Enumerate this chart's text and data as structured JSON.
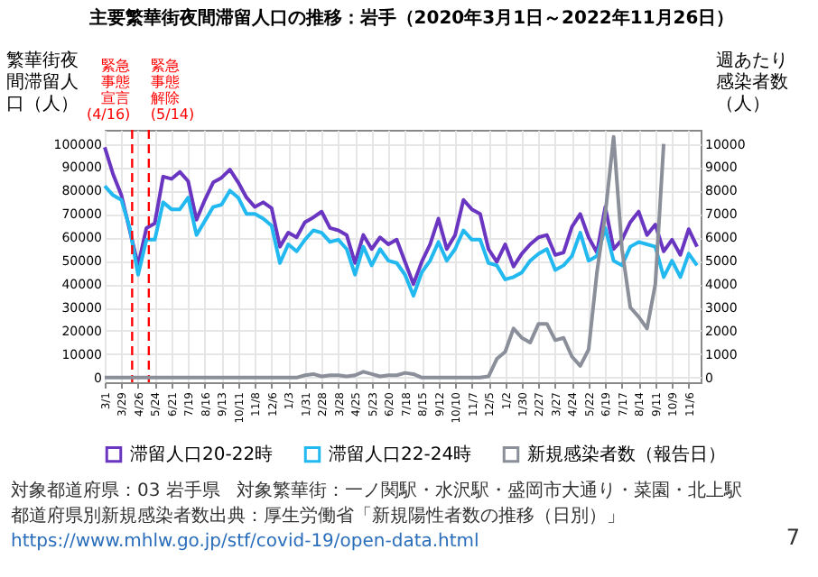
{
  "chart_data": {
    "type": "line",
    "title": "主要繁華街夜間滞留人口の推移：岩手（2020年3月1日～2022年11月26日）",
    "ylabel": "繁華街夜間滞留人口（人）",
    "y2label": "週あたり感染者数（人）",
    "x": [
      "2020-03-01",
      "2020-03-15",
      "2020-03-29",
      "2020-04-12",
      "2020-04-26",
      "2020-05-10",
      "2020-05-24",
      "2020-06-07",
      "2020-06-21",
      "2020-07-05",
      "2020-07-19",
      "2020-08-02",
      "2020-08-16",
      "2020-08-30",
      "2020-09-13",
      "2020-09-27",
      "2020-10-11",
      "2020-10-25",
      "2020-11-08",
      "2020-11-22",
      "2020-12-06",
      "2020-12-20",
      "2021-01-03",
      "2021-01-17",
      "2021-01-31",
      "2021-02-14",
      "2021-02-28",
      "2021-03-14",
      "2021-03-28",
      "2021-04-11",
      "2021-04-25",
      "2021-05-09",
      "2021-05-23",
      "2021-06-06",
      "2021-06-20",
      "2021-07-04",
      "2021-07-18",
      "2021-08-01",
      "2021-08-15",
      "2021-08-29",
      "2021-09-12",
      "2021-09-26",
      "2021-10-10",
      "2021-10-24",
      "2021-11-07",
      "2021-11-21",
      "2021-12-05",
      "2021-12-19",
      "2022-01-02",
      "2022-01-16",
      "2022-01-30",
      "2022-02-13",
      "2022-02-27",
      "2022-03-13",
      "2022-03-27",
      "2022-04-10",
      "2022-04-24",
      "2022-05-08",
      "2022-05-22",
      "2022-06-05",
      "2022-06-19",
      "2022-07-03",
      "2022-07-17",
      "2022-07-31",
      "2022-08-14",
      "2022-08-28",
      "2022-09-11",
      "2022-09-25",
      "2022-10-09",
      "2022-10-23",
      "2022-11-06",
      "2022-11-20"
    ],
    "series": [
      {
        "name": "滞留人口20-22時",
        "color": "#6a35c0",
        "values": [
          98500,
          87000,
          78000,
          63000,
          48000,
          64000,
          66000,
          86000,
          85000,
          88000,
          84000,
          67500,
          76000,
          83500,
          85500,
          89000,
          83500,
          77000,
          73000,
          75000,
          72500,
          56000,
          62000,
          60000,
          66500,
          68500,
          71000,
          64000,
          63000,
          61000,
          49000,
          61000,
          55000,
          60000,
          57000,
          59000,
          49500,
          40000,
          49500,
          57000,
          68000,
          55000,
          61000,
          76000,
          72000,
          70000,
          55000,
          49500,
          57000,
          47500,
          53000,
          57000,
          60000,
          61000,
          52500,
          53500,
          64500,
          70000,
          60000,
          53500,
          73000,
          55000,
          59000,
          66500,
          71000,
          61000,
          65500,
          54000,
          59000,
          52500,
          63500,
          56000
        ]
      },
      {
        "name": "滞留人口22-24時",
        "color": "#22b8f0",
        "values": [
          82000,
          78000,
          76000,
          64000,
          44000,
          59000,
          59000,
          75000,
          72000,
          72000,
          77000,
          61000,
          67000,
          73000,
          74000,
          80000,
          77000,
          70000,
          70000,
          68000,
          65000,
          49000,
          57000,
          54000,
          59000,
          63000,
          62000,
          58000,
          59000,
          55000,
          44000,
          56000,
          48000,
          55000,
          50000,
          49000,
          44000,
          35000,
          45000,
          50000,
          58000,
          50000,
          55000,
          63000,
          59000,
          59000,
          49000,
          48000,
          42000,
          43000,
          45000,
          50000,
          53000,
          55000,
          46000,
          48000,
          52000,
          62000,
          50000,
          52000,
          64000,
          50000,
          48000,
          56000,
          58000,
          57000,
          56000,
          43000,
          50000,
          43000,
          53000,
          48000
        ]
      },
      {
        "name": "新規感染者数（報告日）",
        "color": "#8a8f99",
        "axis": "y2",
        "values": [
          0,
          0,
          0,
          0,
          0,
          0,
          0,
          0,
          0,
          0,
          0,
          0,
          0,
          0,
          0,
          0,
          0,
          0,
          0,
          0,
          0,
          0,
          0,
          0,
          100,
          150,
          50,
          100,
          100,
          50,
          100,
          250,
          150,
          50,
          100,
          100,
          200,
          150,
          0,
          0,
          0,
          0,
          0,
          0,
          0,
          0,
          50,
          800,
          1100,
          2100,
          1700,
          1500,
          2300,
          2300,
          1600,
          1700,
          900,
          500,
          1200,
          4500,
          7000,
          10300,
          5500,
          3000,
          2600,
          2100,
          4000,
          10000,
          null,
          null,
          null,
          null
        ]
      }
    ],
    "xlim": [
      "2020-03-01",
      "2022-11-26"
    ],
    "xticks": [
      {
        "value": "2020-03-01",
        "label": "3/1"
      },
      {
        "value": "2020-03-29",
        "label": "3/29"
      },
      {
        "value": "2020-04-26",
        "label": "4/26"
      },
      {
        "value": "2020-05-24",
        "label": "5/24"
      },
      {
        "value": "2020-06-21",
        "label": "6/21"
      },
      {
        "value": "2020-07-19",
        "label": "7/19"
      },
      {
        "value": "2020-08-16",
        "label": "8/16"
      },
      {
        "value": "2020-09-13",
        "label": "9/13"
      },
      {
        "value": "2020-10-11",
        "label": "10/11"
      },
      {
        "value": "2020-11-08",
        "label": "11/8"
      },
      {
        "value": "2020-12-06",
        "label": "12/6"
      },
      {
        "value": "2021-01-03",
        "label": "1/3"
      },
      {
        "value": "2021-01-31",
        "label": "1/31"
      },
      {
        "value": "2021-02-28",
        "label": "2/28"
      },
      {
        "value": "2021-03-28",
        "label": "3/28"
      },
      {
        "value": "2021-04-25",
        "label": "4/25"
      },
      {
        "value": "2021-05-23",
        "label": "5/23"
      },
      {
        "value": "2021-06-20",
        "label": "6/20"
      },
      {
        "value": "2021-07-18",
        "label": "7/18"
      },
      {
        "value": "2021-08-15",
        "label": "8/15"
      },
      {
        "value": "2021-09-12",
        "label": "9/12"
      },
      {
        "value": "2021-10-10",
        "label": "10/10"
      },
      {
        "value": "2021-11-07",
        "label": "11/7"
      },
      {
        "value": "2021-12-05",
        "label": "12/5"
      },
      {
        "value": "2022-01-02",
        "label": "1/2"
      },
      {
        "value": "2022-01-30",
        "label": "1/30"
      },
      {
        "value": "2022-02-27",
        "label": "2/27"
      },
      {
        "value": "2022-03-27",
        "label": "3/27"
      },
      {
        "value": "2022-04-24",
        "label": "4/24"
      },
      {
        "value": "2022-05-22",
        "label": "5/22"
      },
      {
        "value": "2022-06-19",
        "label": "6/19"
      },
      {
        "value": "2022-07-17",
        "label": "7/17"
      },
      {
        "value": "2022-08-14",
        "label": "8/14"
      },
      {
        "value": "2022-09-11",
        "label": "9/11"
      },
      {
        "value": "2022-10-09",
        "label": "10/9"
      },
      {
        "value": "2022-11-06",
        "label": "11/6"
      }
    ],
    "ylim": [
      -2000,
      106000
    ],
    "yticks": [
      0,
      10000,
      20000,
      30000,
      40000,
      50000,
      60000,
      70000,
      80000,
      90000,
      100000
    ],
    "y2lim": [
      -200,
      10600
    ],
    "y2ticks": [
      0,
      1000,
      2000,
      3000,
      4000,
      5000,
      6000,
      7000,
      8000,
      9000,
      10000
    ],
    "ref_lines": [
      {
        "axis": "x",
        "value": "2020-04-16",
        "label": "緊急事態宣言(4/16)",
        "color": "#ff0000",
        "line_style": "dashed"
      },
      {
        "axis": "x",
        "value": "2020-05-14",
        "label": "緊急事態解除(5/14)",
        "color": "#ff0000",
        "line_style": "dashed"
      }
    ],
    "annotations": [
      "対象都道府県：03 岩手県",
      "対象繁華街：一ノ関駅・水沢駅・盛岡市大通り・菜園・北上駅",
      "都道府県別新規感染者数出典：厚生労働省「新規陽性者数の推移（日別）」",
      "https://www.mhlw.go.jp/stf/covid-19/open-data.html",
      "7"
    ],
    "grid": true,
    "legend": "bottom",
    "line_style": "solid",
    "marker": "none"
  }
}
